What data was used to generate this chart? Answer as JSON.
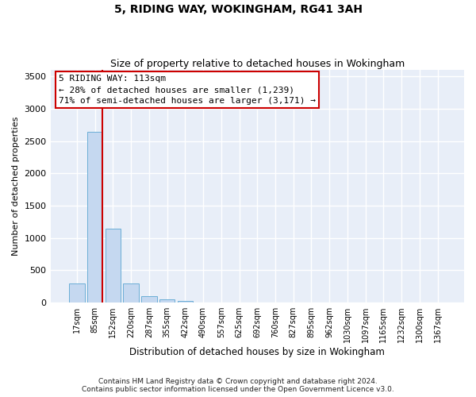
{
  "title": "5, RIDING WAY, WOKINGHAM, RG41 3AH",
  "subtitle": "Size of property relative to detached houses in Wokingham",
  "xlabel": "Distribution of detached houses by size in Wokingham",
  "ylabel": "Number of detached properties",
  "bin_labels": [
    "17sqm",
    "85sqm",
    "152sqm",
    "220sqm",
    "287sqm",
    "355sqm",
    "422sqm",
    "490sqm",
    "557sqm",
    "625sqm",
    "692sqm",
    "760sqm",
    "827sqm",
    "895sqm",
    "962sqm",
    "1030sqm",
    "1097sqm",
    "1165sqm",
    "1232sqm",
    "1300sqm",
    "1367sqm"
  ],
  "bar_values": [
    290,
    2640,
    1140,
    300,
    100,
    50,
    30,
    0,
    0,
    0,
    0,
    0,
    0,
    0,
    0,
    0,
    0,
    0,
    0,
    0,
    0
  ],
  "bar_color": "#c5d8f0",
  "bar_edge_color": "#6baed6",
  "property_line_color": "#cc0000",
  "annotation_text": "5 RIDING WAY: 113sqm\n← 28% of detached houses are smaller (1,239)\n71% of semi-detached houses are larger (3,171) →",
  "annotation_box_facecolor": "white",
  "annotation_box_edgecolor": "#cc0000",
  "ylim": [
    0,
    3600
  ],
  "yticks": [
    0,
    500,
    1000,
    1500,
    2000,
    2500,
    3000,
    3500
  ],
  "bg_color": "#e8eef8",
  "footer_line1": "Contains HM Land Registry data © Crown copyright and database right 2024.",
  "footer_line2": "Contains public sector information licensed under the Open Government Licence v3.0.",
  "title_fontsize": 10,
  "subtitle_fontsize": 9,
  "red_line_bin_index": 1,
  "bar_width": 0.85
}
